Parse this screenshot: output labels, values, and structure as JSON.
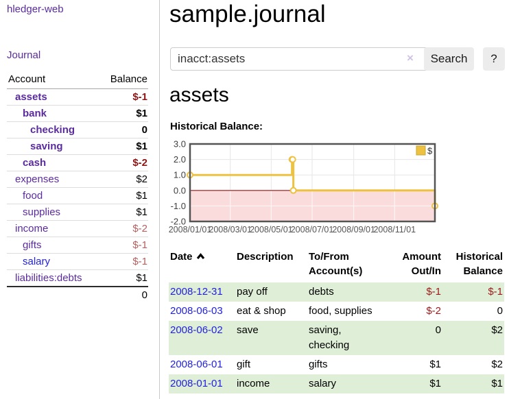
{
  "app": {
    "title": "hledger-web"
  },
  "sidebar": {
    "journal_link": "Journal",
    "accounts_table": {
      "col_account": "Account",
      "col_balance": "Balance",
      "rows": [
        {
          "name": "assets",
          "indent": 0,
          "bold": true,
          "balance": "$-1"
        },
        {
          "name": "bank",
          "indent": 1,
          "bold": true,
          "balance": "$1"
        },
        {
          "name": "checking",
          "indent": 2,
          "bold": true,
          "balance": "0"
        },
        {
          "name": "saving",
          "indent": 2,
          "bold": true,
          "balance": "$1"
        },
        {
          "name": "cash",
          "indent": 1,
          "bold": true,
          "balance": "$-2"
        },
        {
          "name": "expenses",
          "indent": 0,
          "bold": false,
          "balance": "$2"
        },
        {
          "name": "food",
          "indent": 1,
          "bold": false,
          "balance": "$1"
        },
        {
          "name": "supplies",
          "indent": 1,
          "bold": false,
          "balance": "$1"
        },
        {
          "name": "income",
          "indent": 0,
          "bold": false,
          "balance": "$-2"
        },
        {
          "name": "gifts",
          "indent": 1,
          "bold": false,
          "balance": "$-1"
        },
        {
          "name": "salary",
          "indent": 1,
          "bold": false,
          "balance": "$-1"
        },
        {
          "name": "liabilities:debts",
          "indent": 0,
          "bold": false,
          "balance": "$1"
        }
      ],
      "total": "0"
    }
  },
  "main": {
    "title": "sample.journal",
    "search": {
      "value": "inacct:assets",
      "clear_icon": "×",
      "button_label": "Search",
      "help_label": "?"
    },
    "account_heading": "assets",
    "chart_label": "Historical Balance:"
  },
  "chart_data": {
    "type": "line",
    "step": true,
    "title": "Historical Balance",
    "series": [
      {
        "name": "$",
        "color": "#edc240",
        "points": [
          [
            "2008-01-01",
            1
          ],
          [
            "2008-06-01",
            2
          ],
          [
            "2008-06-02",
            2
          ],
          [
            "2008-06-03",
            0
          ],
          [
            "2008-12-31",
            -1
          ]
        ]
      }
    ],
    "xlim": [
      "2008-01-01",
      "2008-12-31"
    ],
    "ylim": [
      -2,
      3
    ],
    "yticks": [
      "3.0",
      "2.0",
      "1.0",
      "0.0",
      "-1.0",
      "-2.0"
    ],
    "xticks": [
      {
        "date": "2008-01-01",
        "label": "2008/01/01"
      },
      {
        "date": "2008-03-01",
        "label": "2008/03/01"
      },
      {
        "date": "2008-05-01",
        "label": "2008/05/01"
      },
      {
        "date": "2008-07-01",
        "label": "2008/07/01"
      },
      {
        "date": "2008-09-01",
        "label": "2008/09/01"
      },
      {
        "date": "2008-11-01",
        "label": "2008/11/01"
      }
    ],
    "legend": {
      "label": "$",
      "position": "top-right"
    },
    "grid": true,
    "negative_region_color": "#fbdcdc",
    "zero_line_color": "#991111",
    "border_color": "#545454"
  },
  "transactions": {
    "headers": {
      "date": "Date",
      "description": "Description",
      "accounts": "To/From Account(s)",
      "amount": "Amount Out/In",
      "balance": "Historical Balance"
    },
    "rows": [
      {
        "date": "2008-12-31",
        "description": "pay off",
        "accounts": "debts",
        "amount": "$-1",
        "amount_negative": true,
        "balance": "$-1",
        "balance_negative": true,
        "shaded": true
      },
      {
        "date": "2008-06-03",
        "description": "eat & shop",
        "accounts": "food, supplies",
        "amount": "$-2",
        "amount_negative": true,
        "balance": "0",
        "balance_negative": false,
        "shaded": false
      },
      {
        "date": "2008-06-02",
        "description": "save",
        "accounts": "saving, checking",
        "amount": "0",
        "amount_negative": false,
        "balance": "$2",
        "balance_negative": false,
        "shaded": true
      },
      {
        "date": "2008-06-01",
        "description": "gift",
        "accounts": "gifts",
        "amount": "$1",
        "amount_negative": false,
        "balance": "$2",
        "balance_negative": false,
        "shaded": false
      },
      {
        "date": "2008-01-01",
        "description": "income",
        "accounts": "salary",
        "amount": "$1",
        "amount_negative": false,
        "balance": "$1",
        "balance_negative": false,
        "shaded": true
      }
    ]
  }
}
